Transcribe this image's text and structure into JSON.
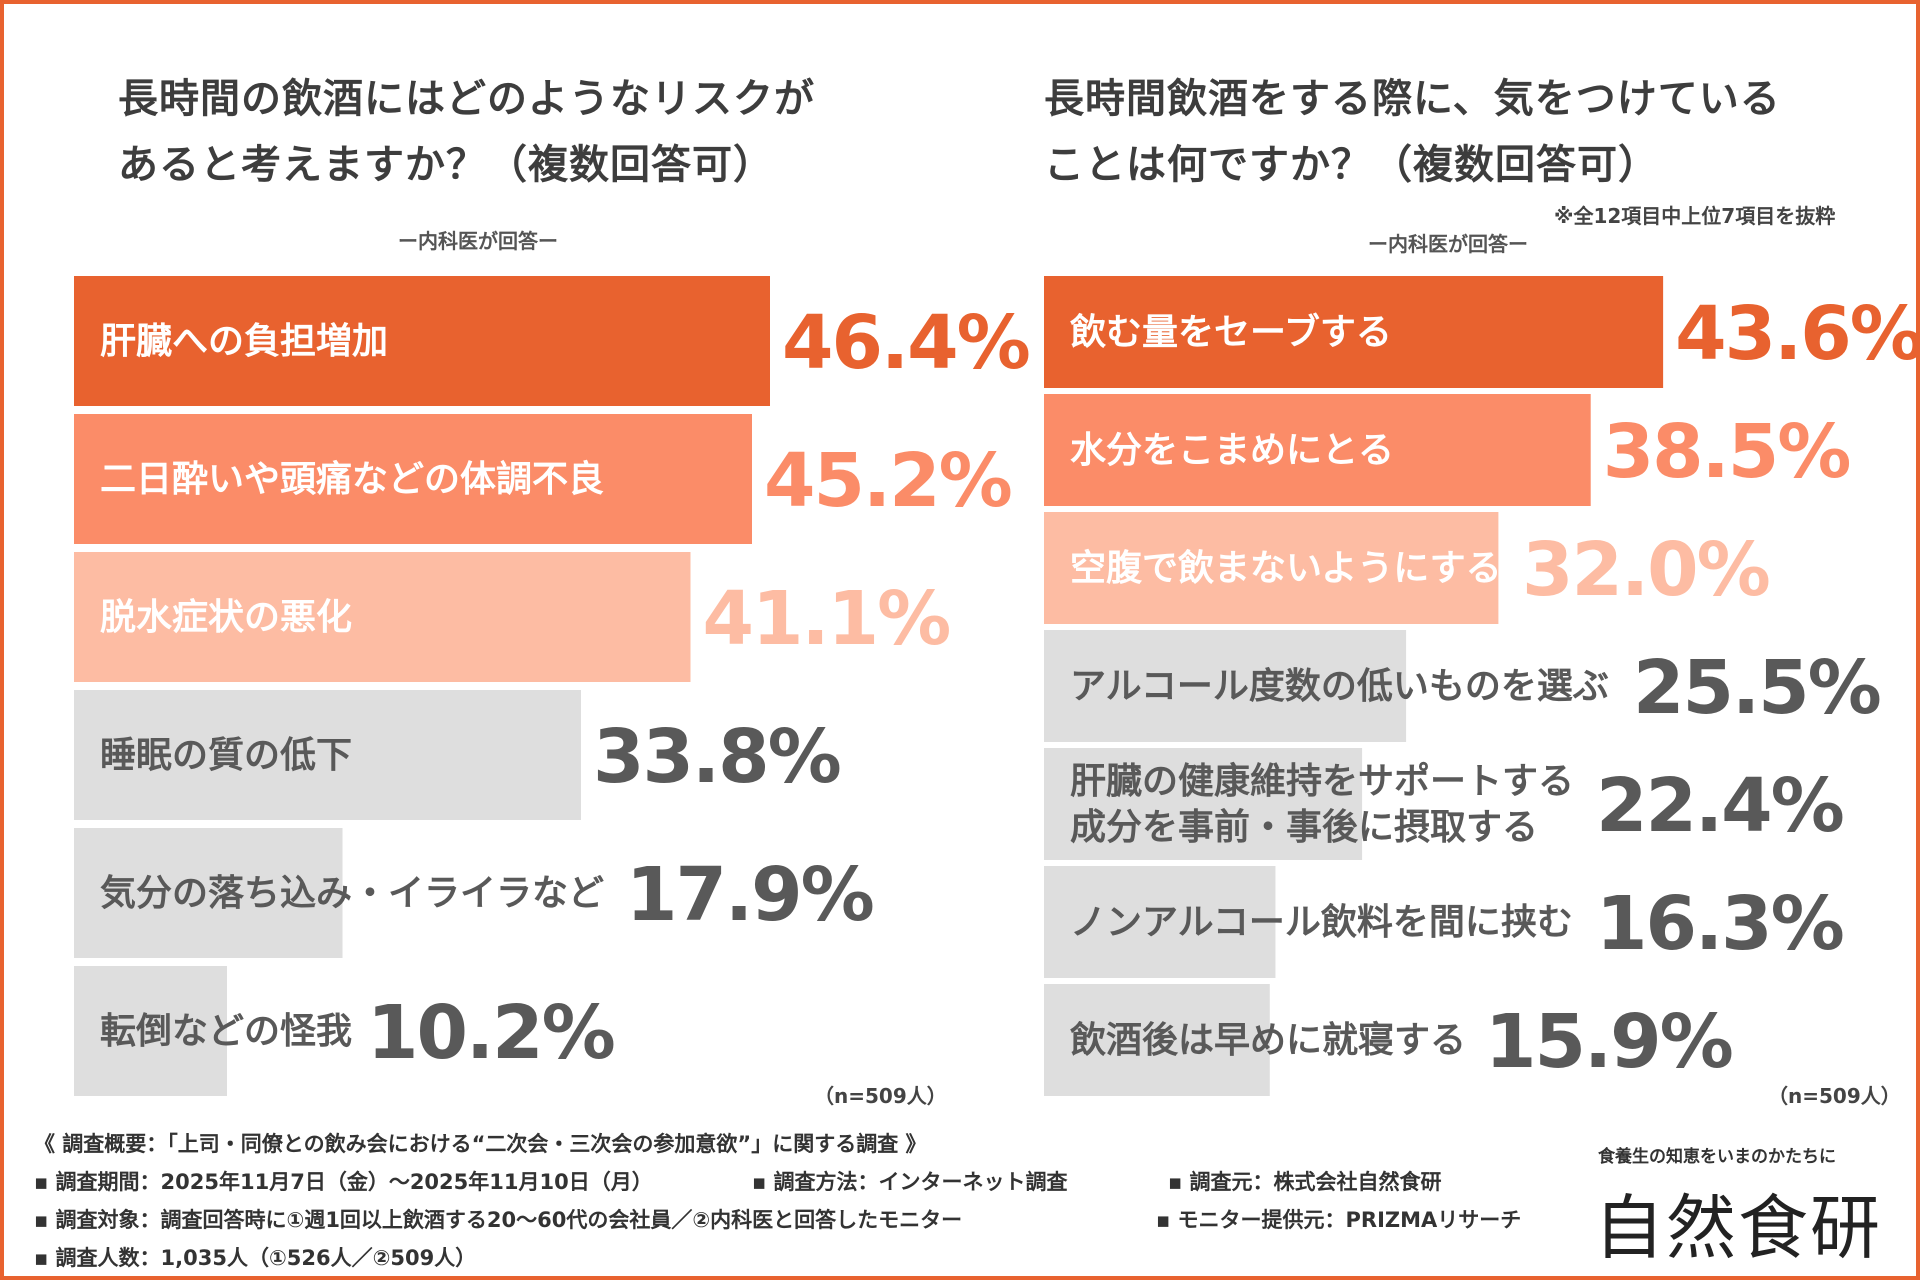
{
  "left_panel": {
    "title_line1": "長時間の飲酒にはどのようなリスクが",
    "title_line2": "あると考えますか？（複数回答可）",
    "subtitle": "ー内科医が回答ー",
    "n_note": "（n=509人）"
  },
  "right_panel": {
    "title_line1": "長時間飲酒をする際に、気をつけている",
    "title_line2": "ことは何ですか？（複数回答可）",
    "note": "※全12項目中上位7項目を抜粋",
    "subtitle": "ー内科医が回答ー",
    "n_note": "（n=509人）"
  },
  "colors": {
    "rank1": "#e8622f",
    "rank2": "#fb8c68",
    "rank3": "#fdbca3",
    "other": "#dedede",
    "other_text": "#595959",
    "white_text": "#ffffff"
  },
  "chart_data": [
    {
      "type": "bar",
      "orientation": "horizontal",
      "title": "長時間の飲酒にはどのようなリスクがあると考えますか？（複数回答可）",
      "xlim": [
        0,
        60
      ],
      "unit": "%",
      "categories": [
        [
          "肝臓への負担増加"
        ],
        [
          "二日酔いや頭痛などの体調不良"
        ],
        [
          "脱水症状の悪化"
        ],
        [
          "睡眠の質の低下"
        ],
        [
          "気分の落ち込み・イライラなど"
        ],
        [
          "転倒などの怪我"
        ]
      ],
      "values": [
        46.4,
        45.2,
        41.1,
        33.8,
        17.9,
        10.2
      ],
      "labels": [
        "46.4%",
        "45.2%",
        "41.1%",
        "33.8%",
        "17.9%",
        "10.2%"
      ]
    },
    {
      "type": "bar",
      "orientation": "horizontal",
      "title": "長時間飲酒をする際に、気をつけていることは何ですか？（複数回答可）",
      "xlim": [
        0,
        60
      ],
      "unit": "%",
      "categories": [
        [
          "飲む量をセーブする"
        ],
        [
          "水分をこまめにとる"
        ],
        [
          "空腹で飲まないようにする"
        ],
        [
          "アルコール度数の低いものを選ぶ"
        ],
        [
          "肝臓の健康維持をサポートする",
          "成分を事前・事後に摂取する"
        ],
        [
          "ノンアルコール飲料を間に挟む"
        ],
        [
          "飲酒後は早めに就寝する"
        ]
      ],
      "values": [
        43.6,
        38.5,
        32.0,
        25.5,
        22.4,
        16.3,
        15.9
      ],
      "labels": [
        "43.6%",
        "38.5%",
        "32.0%",
        "25.5%",
        "22.4%",
        "16.3%",
        "15.9%"
      ]
    }
  ],
  "footer": {
    "summary": "《 調査概要：「上司・同僚との飲み会における“二次会・三次会の参加意欲”」に関する調査 》",
    "period": "▪ 調査期間：2025年11月7日（金）〜2025年11月10日（月）",
    "method": "▪ 調査方法：インターネット調査",
    "source": "▪ 調査元：株式会社自然食研",
    "target": "▪ 調査対象：調査回答時に①週1回以上飲酒する20〜60代の会社員／②内科医と回答したモニター",
    "monitor": "▪ モニター提供元：PRIZMAリサーチ",
    "count": "▪ 調査人数：1,035人（①526人／②509人）"
  },
  "brand": {
    "tagline": "食養生の知恵をいまのかたちに",
    "logo_text": "自然食研"
  }
}
